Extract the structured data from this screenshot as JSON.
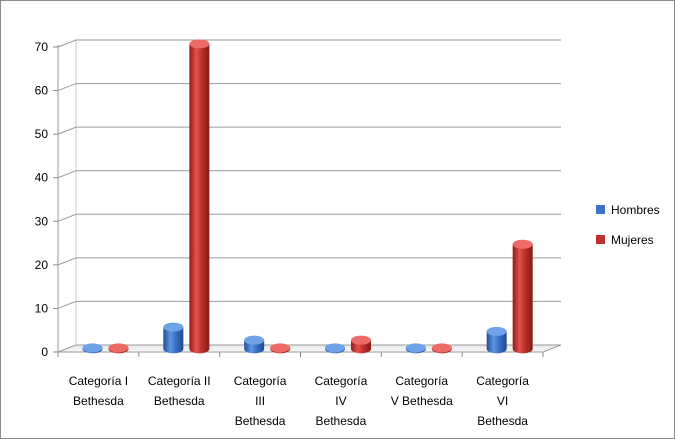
{
  "chart_data": {
    "type": "bar",
    "title": "",
    "xlabel": "",
    "ylabel": "",
    "ylim": [
      0,
      70
    ],
    "yticks": [
      0,
      10,
      20,
      30,
      40,
      50,
      60,
      70
    ],
    "grid": true,
    "legend_position": "right",
    "categories": [
      [
        "Categoría I",
        "Bethesda"
      ],
      [
        "Categoría II",
        "Bethesda"
      ],
      [
        "Categoría",
        "III",
        "Bethesda"
      ],
      [
        "Categoría",
        "IV",
        "Bethesda"
      ],
      [
        "Categoría",
        "V Bethesda"
      ],
      [
        "Categoría",
        "VI",
        "Bethesda"
      ]
    ],
    "series": [
      {
        "name": "Hombres",
        "values": [
          0,
          5,
          2,
          0,
          0,
          4
        ],
        "color": "#3a73c8"
      },
      {
        "name": "Mujeres",
        "values": [
          0,
          70,
          0,
          2,
          0,
          24
        ],
        "color": "#c0302c"
      }
    ]
  }
}
